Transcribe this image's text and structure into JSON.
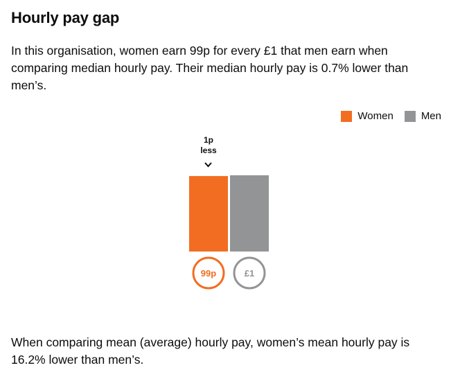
{
  "heading": "Hourly pay gap",
  "intro": "In this organisation, women earn 99p for every £1 that men earn when comparing median hourly pay. Their median hourly pay is 0.7% lower than men’s.",
  "legend": {
    "placement": "top-right",
    "items": [
      {
        "label": "Women",
        "color": "#f26d21"
      },
      {
        "label": "Men",
        "color": "#939496"
      }
    ]
  },
  "chart_data": {
    "type": "bar",
    "categories": [
      "Women",
      "Men"
    ],
    "values": [
      0.99,
      1.0
    ],
    "value_labels": [
      "99p",
      "£1"
    ],
    "colors": [
      "#f26d21",
      "#939496"
    ],
    "ylim": [
      0,
      1
    ],
    "grid": false,
    "annotation": {
      "target": "Women",
      "lines": [
        "1p",
        "less"
      ],
      "icon": "chevron-down-icon"
    }
  },
  "outro": "When comparing mean (average) hourly pay, women’s mean hourly pay is 16.2% lower than men’s."
}
